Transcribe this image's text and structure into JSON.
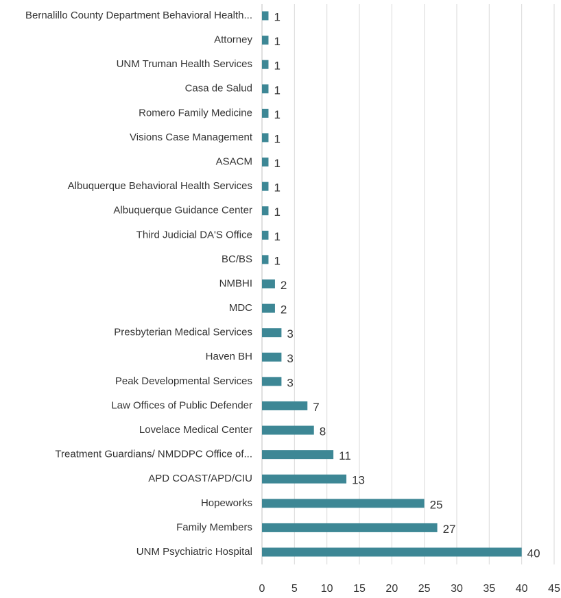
{
  "chart_data": {
    "type": "bar",
    "orientation": "horizontal",
    "categories": [
      "Bernalillo County Department Behavioral Health...",
      "Attorney",
      "UNM Truman Health Services",
      "Casa de Salud",
      "Romero Family Medicine",
      "Visions Case Management",
      "ASACM",
      "Albuquerque Behavioral Health Services",
      "Albuquerque Guidance Center",
      "Third Judicial DA'S Office",
      "BC/BS",
      "NMBHI",
      "MDC",
      "Presbyterian Medical Services",
      "Haven BH",
      "Peak Developmental Services",
      "Law Offices of Public Defender",
      "Lovelace Medical Center",
      "Treatment Guardians/ NMDDPC Office of...",
      "APD COAST/APD/CIU",
      "Hopeworks",
      "Family Members",
      "UNM Psychiatric Hospital"
    ],
    "values": [
      1,
      1,
      1,
      1,
      1,
      1,
      1,
      1,
      1,
      1,
      1,
      2,
      2,
      3,
      3,
      3,
      7,
      8,
      11,
      13,
      25,
      27,
      40
    ],
    "color": "#3d8795",
    "xlim": [
      0,
      45
    ],
    "xticks": [
      0,
      5,
      10,
      15,
      20,
      25,
      30,
      35,
      40,
      45
    ],
    "grid": true
  }
}
